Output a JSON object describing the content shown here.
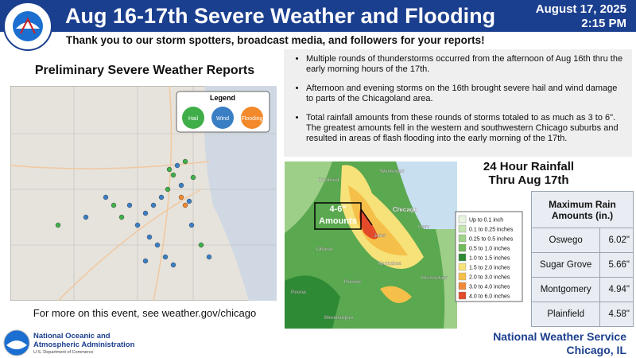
{
  "header": {
    "title": "Aug 16-17th Severe Weather and Flooding",
    "date": "August 17, 2025",
    "time": "2:15 PM",
    "subtitle": "Thank you to our storm spotters, broadcast media, and followers for your reports!"
  },
  "reports_map": {
    "title": "Preliminary Severe Weather Reports",
    "legend": {
      "title": "Legend",
      "items": [
        "Hail",
        "Wind",
        "Flooding"
      ]
    },
    "note": "For more on this event, see weather.gov/chicago"
  },
  "summary": {
    "bullets": [
      "Multiple rounds of thunderstorms occurred from the afternoon of Aug 16th thru the early morning hours of the 17th.",
      "Afternoon and evening storms on the 16th brought severe hail and wind damage to parts of the Chicagoland area.",
      "Total rainfall amounts from these rounds of storms totaled to as much as 3 to 6\". The greatest amounts fell in the western and southwestern Chicago suburbs and resulted in areas of flash flooding into the early morning of the 17th."
    ]
  },
  "rainfall_map": {
    "annotation": [
      "4-6\"",
      "Amounts"
    ],
    "places": [
      "Waukegan",
      "Rockford",
      "Chicago",
      "Gary",
      "Joliet",
      "Ottawa",
      "Kankakee",
      "Pontiac",
      "Peoria",
      "Bloomington",
      "Rensselaer"
    ],
    "legend": [
      "Up to 0.1 inch",
      "0.1 to 0.25 inches",
      "0.25 to 0.5 inches",
      "0.5 to 1.0 inches",
      "1.0 to 1.5 inches",
      "1.5 to 2.0 inches",
      "2.0 to 3.0 inches",
      "3.0 to 4.0 inches",
      "4.0 to 6.0 inches"
    ]
  },
  "rainfall": {
    "title": [
      "24 Hour Rainfall",
      "Thru Aug 17th"
    ],
    "table": {
      "header": "Maximum Rain Amounts (in.)",
      "rows": [
        [
          "Oswego",
          "6.02\""
        ],
        [
          "Sugar Grove",
          "5.66\""
        ],
        [
          "Montgomery",
          "4.94\""
        ],
        [
          "Plainfield",
          "4.58\""
        ]
      ]
    }
  },
  "footer": {
    "agency": [
      "National Oceanic and",
      "Atmospheric Administration"
    ],
    "department": "U.S. Department of Commerce",
    "office": "National Weather Service",
    "location": "Chicago, IL"
  }
}
